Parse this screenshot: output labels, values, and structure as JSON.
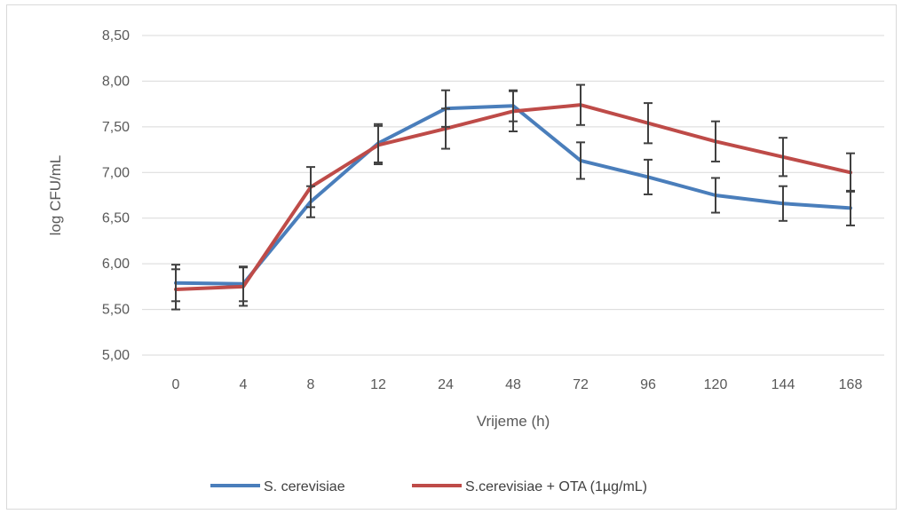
{
  "chart_data": {
    "type": "line",
    "title": "",
    "xlabel": "Vrijeme (h)",
    "ylabel": "log CFU/mL",
    "categories": [
      "0",
      "4",
      "8",
      "12",
      "24",
      "48",
      "72",
      "96",
      "120",
      "144",
      "168"
    ],
    "y_ticks": [
      "5,00",
      "5,50",
      "6,00",
      "6,50",
      "7,00",
      "7,50",
      "8,00",
      "8,50"
    ],
    "ylim": [
      5.0,
      8.5
    ],
    "grid": true,
    "legend_position": "bottom",
    "series": [
      {
        "name": "S. cerevisiae",
        "color": "#4a7ebb",
        "values": [
          5.79,
          5.78,
          6.68,
          7.32,
          7.7,
          7.73,
          7.13,
          6.95,
          6.75,
          6.66,
          6.61
        ],
        "error": [
          0.2,
          0.19,
          0.17,
          0.21,
          0.2,
          0.17,
          0.2,
          0.19,
          0.19,
          0.19,
          0.19
        ]
      },
      {
        "name": "S.cerevisiae + OTA (1µg/mL)",
        "color": "#be4b48",
        "values": [
          5.72,
          5.75,
          6.84,
          7.3,
          7.48,
          7.67,
          7.74,
          7.54,
          7.34,
          7.17,
          7.0
        ],
        "error": [
          0.22,
          0.21,
          0.22,
          0.21,
          0.22,
          0.22,
          0.22,
          0.22,
          0.22,
          0.21,
          0.21
        ]
      }
    ]
  }
}
